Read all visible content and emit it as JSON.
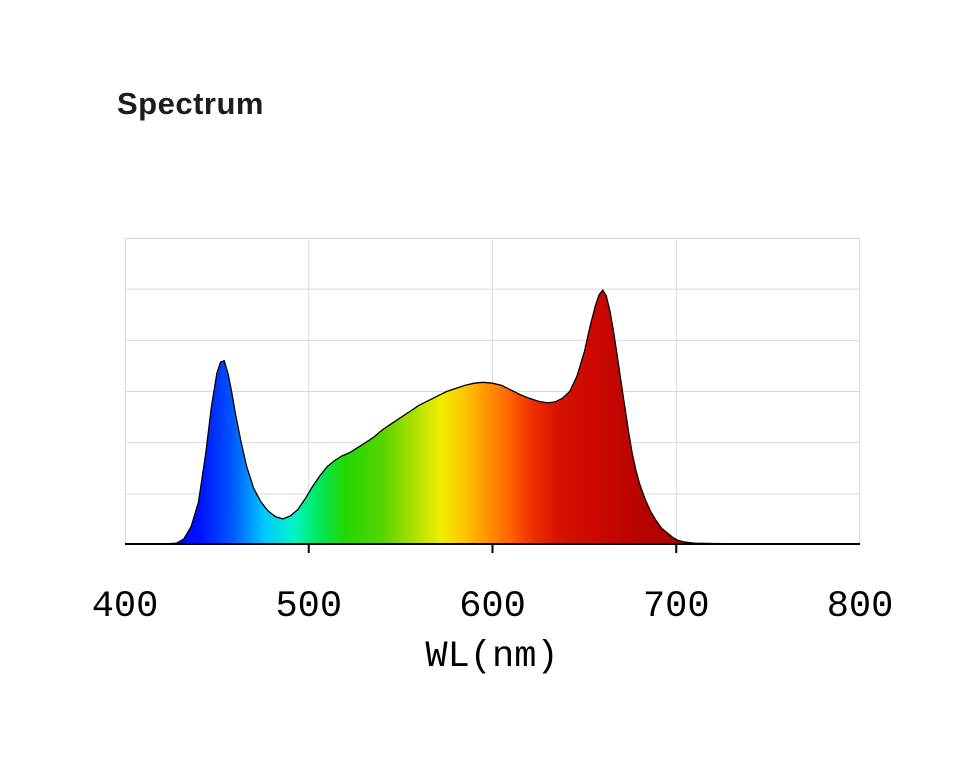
{
  "page": {
    "background": "#ffffff"
  },
  "header": {
    "title": "Spectrum"
  },
  "chart_data": {
    "type": "area",
    "title": "Spectrum",
    "xlabel": "WL(nm)",
    "ylabel": "",
    "xlim": [
      400,
      800
    ],
    "ylim": [
      0,
      1
    ],
    "x_ticks": [
      400,
      500,
      600,
      700,
      800
    ],
    "y_gridlines": 6,
    "grid": true,
    "legend": "none",
    "colors": {
      "grid": "#d9d9d9",
      "axis": "#000000",
      "line": "#000000"
    },
    "gradient_stops": [
      [
        400,
        "#0000bb"
      ],
      [
        440,
        "#0010ff"
      ],
      [
        458,
        "#0055ff"
      ],
      [
        476,
        "#00c8ff"
      ],
      [
        492,
        "#00f5c8"
      ],
      [
        505,
        "#00e860"
      ],
      [
        520,
        "#22d800"
      ],
      [
        540,
        "#55d400"
      ],
      [
        558,
        "#b0e000"
      ],
      [
        572,
        "#f0ee00"
      ],
      [
        585,
        "#ffc400"
      ],
      [
        598,
        "#ff9000"
      ],
      [
        610,
        "#ff6000"
      ],
      [
        622,
        "#ee2e00"
      ],
      [
        635,
        "#d81400"
      ],
      [
        655,
        "#cc0800"
      ],
      [
        700,
        "#aa0000"
      ],
      [
        800,
        "#990000"
      ]
    ],
    "points": [
      [
        400,
        0.002
      ],
      [
        410,
        0.002
      ],
      [
        420,
        0.003
      ],
      [
        428,
        0.006
      ],
      [
        432,
        0.02
      ],
      [
        436,
        0.06
      ],
      [
        440,
        0.14
      ],
      [
        444,
        0.3
      ],
      [
        447,
        0.45
      ],
      [
        450,
        0.56
      ],
      [
        452,
        0.595
      ],
      [
        454,
        0.6
      ],
      [
        456,
        0.56
      ],
      [
        458,
        0.5
      ],
      [
        460,
        0.43
      ],
      [
        463,
        0.34
      ],
      [
        466,
        0.26
      ],
      [
        470,
        0.185
      ],
      [
        474,
        0.14
      ],
      [
        478,
        0.11
      ],
      [
        482,
        0.092
      ],
      [
        486,
        0.085
      ],
      [
        490,
        0.095
      ],
      [
        494,
        0.115
      ],
      [
        498,
        0.15
      ],
      [
        502,
        0.19
      ],
      [
        506,
        0.225
      ],
      [
        510,
        0.255
      ],
      [
        514,
        0.275
      ],
      [
        518,
        0.29
      ],
      [
        522,
        0.3
      ],
      [
        526,
        0.315
      ],
      [
        530,
        0.33
      ],
      [
        535,
        0.35
      ],
      [
        540,
        0.375
      ],
      [
        545,
        0.395
      ],
      [
        550,
        0.415
      ],
      [
        555,
        0.435
      ],
      [
        560,
        0.455
      ],
      [
        565,
        0.47
      ],
      [
        570,
        0.485
      ],
      [
        575,
        0.5
      ],
      [
        580,
        0.51
      ],
      [
        585,
        0.52
      ],
      [
        590,
        0.527
      ],
      [
        595,
        0.53
      ],
      [
        600,
        0.527
      ],
      [
        605,
        0.52
      ],
      [
        610,
        0.505
      ],
      [
        615,
        0.49
      ],
      [
        620,
        0.478
      ],
      [
        625,
        0.468
      ],
      [
        630,
        0.463
      ],
      [
        634,
        0.466
      ],
      [
        638,
        0.478
      ],
      [
        642,
        0.5
      ],
      [
        646,
        0.55
      ],
      [
        650,
        0.63
      ],
      [
        653,
        0.71
      ],
      [
        656,
        0.78
      ],
      [
        658,
        0.815
      ],
      [
        660,
        0.83
      ],
      [
        662,
        0.81
      ],
      [
        664,
        0.76
      ],
      [
        666,
        0.69
      ],
      [
        668,
        0.61
      ],
      [
        670,
        0.53
      ],
      [
        672,
        0.45
      ],
      [
        674,
        0.37
      ],
      [
        676,
        0.3
      ],
      [
        678,
        0.245
      ],
      [
        680,
        0.2
      ],
      [
        683,
        0.15
      ],
      [
        686,
        0.11
      ],
      [
        689,
        0.08
      ],
      [
        692,
        0.055
      ],
      [
        695,
        0.04
      ],
      [
        698,
        0.025
      ],
      [
        701,
        0.015
      ],
      [
        705,
        0.009
      ],
      [
        710,
        0.006
      ],
      [
        720,
        0.005
      ],
      [
        735,
        0.004
      ],
      [
        750,
        0.004
      ],
      [
        770,
        0.003
      ],
      [
        800,
        0.003
      ]
    ]
  }
}
